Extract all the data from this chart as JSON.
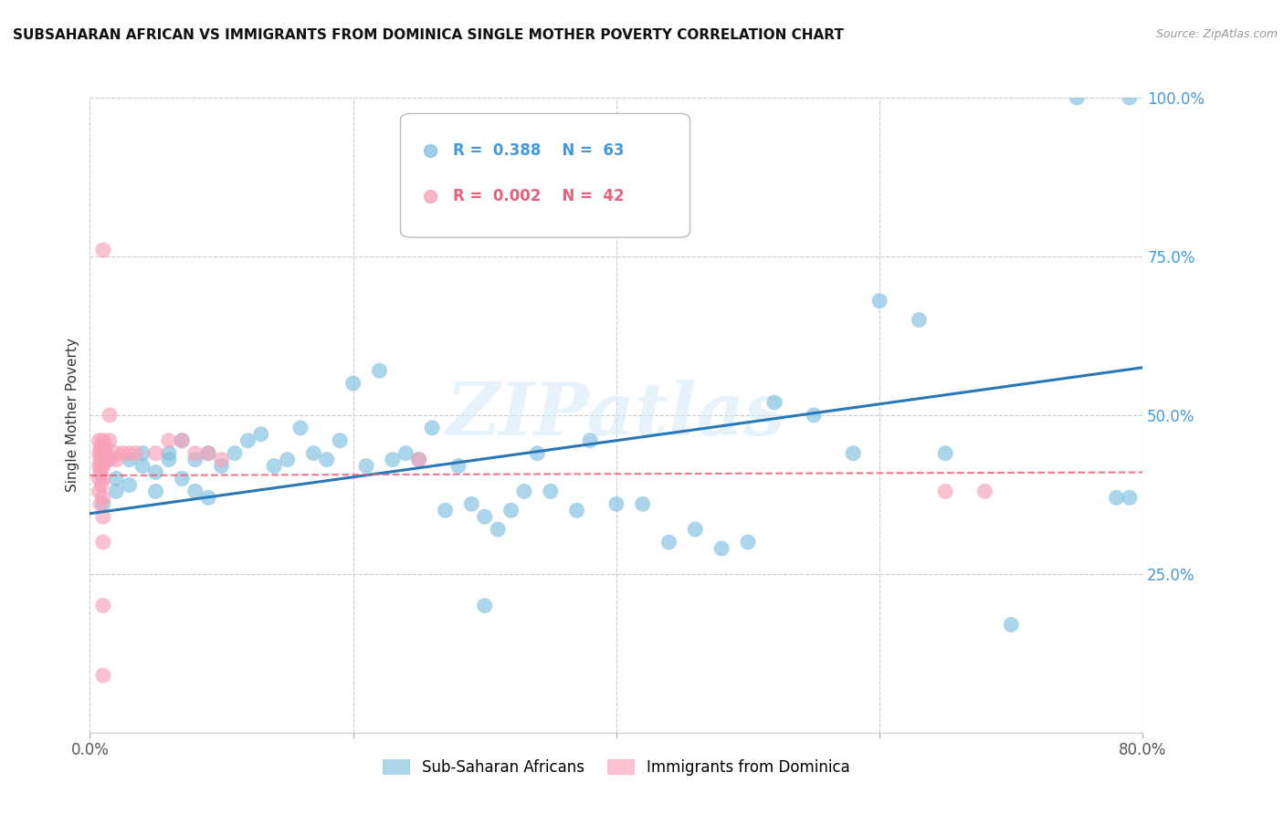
{
  "title": "SUBSAHARAN AFRICAN VS IMMIGRANTS FROM DOMINICA SINGLE MOTHER POVERTY CORRELATION CHART",
  "source": "Source: ZipAtlas.com",
  "ylabel": "Single Mother Poverty",
  "xlim": [
    0.0,
    0.8
  ],
  "ylim": [
    0.0,
    1.0
  ],
  "blue_color": "#7fbfdf",
  "pink_color": "#f8a0b8",
  "blue_line_color": "#2878b8",
  "pink_line_color": "#e8607a",
  "watermark_color": "#d5eaf8",
  "legend_blue_label": "Sub-Saharan Africans",
  "legend_pink_label": "Immigrants from Dominica",
  "blue_x": [
    0.01,
    0.02,
    0.02,
    0.03,
    0.03,
    0.04,
    0.04,
    0.05,
    0.05,
    0.06,
    0.06,
    0.07,
    0.07,
    0.08,
    0.08,
    0.09,
    0.09,
    0.1,
    0.11,
    0.12,
    0.13,
    0.14,
    0.15,
    0.16,
    0.17,
    0.18,
    0.19,
    0.2,
    0.21,
    0.22,
    0.23,
    0.24,
    0.25,
    0.26,
    0.27,
    0.28,
    0.29,
    0.3,
    0.31,
    0.32,
    0.33,
    0.34,
    0.35,
    0.37,
    0.38,
    0.4,
    0.42,
    0.44,
    0.46,
    0.48,
    0.5,
    0.52,
    0.55,
    0.58,
    0.6,
    0.65,
    0.7,
    0.75,
    0.78,
    0.79,
    0.79,
    0.63,
    0.3
  ],
  "blue_y": [
    0.36,
    0.4,
    0.38,
    0.43,
    0.39,
    0.42,
    0.44,
    0.41,
    0.38,
    0.44,
    0.43,
    0.46,
    0.4,
    0.43,
    0.38,
    0.44,
    0.37,
    0.42,
    0.44,
    0.46,
    0.47,
    0.42,
    0.43,
    0.48,
    0.44,
    0.43,
    0.46,
    0.55,
    0.42,
    0.57,
    0.43,
    0.44,
    0.43,
    0.48,
    0.35,
    0.42,
    0.36,
    0.34,
    0.32,
    0.35,
    0.38,
    0.44,
    0.38,
    0.35,
    0.46,
    0.36,
    0.36,
    0.3,
    0.32,
    0.29,
    0.3,
    0.52,
    0.5,
    0.44,
    0.68,
    0.44,
    0.17,
    1.0,
    0.37,
    1.0,
    0.37,
    0.65,
    0.2
  ],
  "pink_x": [
    0.007,
    0.007,
    0.007,
    0.007,
    0.007,
    0.008,
    0.008,
    0.008,
    0.008,
    0.009,
    0.009,
    0.009,
    0.01,
    0.01,
    0.01,
    0.01,
    0.01,
    0.01,
    0.01,
    0.012,
    0.012,
    0.013,
    0.015,
    0.015,
    0.015,
    0.02,
    0.02,
    0.025,
    0.03,
    0.035,
    0.05,
    0.06,
    0.07,
    0.08,
    0.09,
    0.1,
    0.25,
    0.65,
    0.68,
    0.01,
    0.01,
    0.01
  ],
  "pink_y": [
    0.44,
    0.46,
    0.42,
    0.4,
    0.38,
    0.45,
    0.43,
    0.41,
    0.36,
    0.44,
    0.42,
    0.39,
    0.46,
    0.44,
    0.42,
    0.4,
    0.37,
    0.34,
    0.3,
    0.45,
    0.44,
    0.43,
    0.43,
    0.46,
    0.5,
    0.44,
    0.43,
    0.44,
    0.44,
    0.44,
    0.44,
    0.46,
    0.46,
    0.44,
    0.44,
    0.43,
    0.43,
    0.38,
    0.38,
    0.76,
    0.2,
    0.09
  ]
}
